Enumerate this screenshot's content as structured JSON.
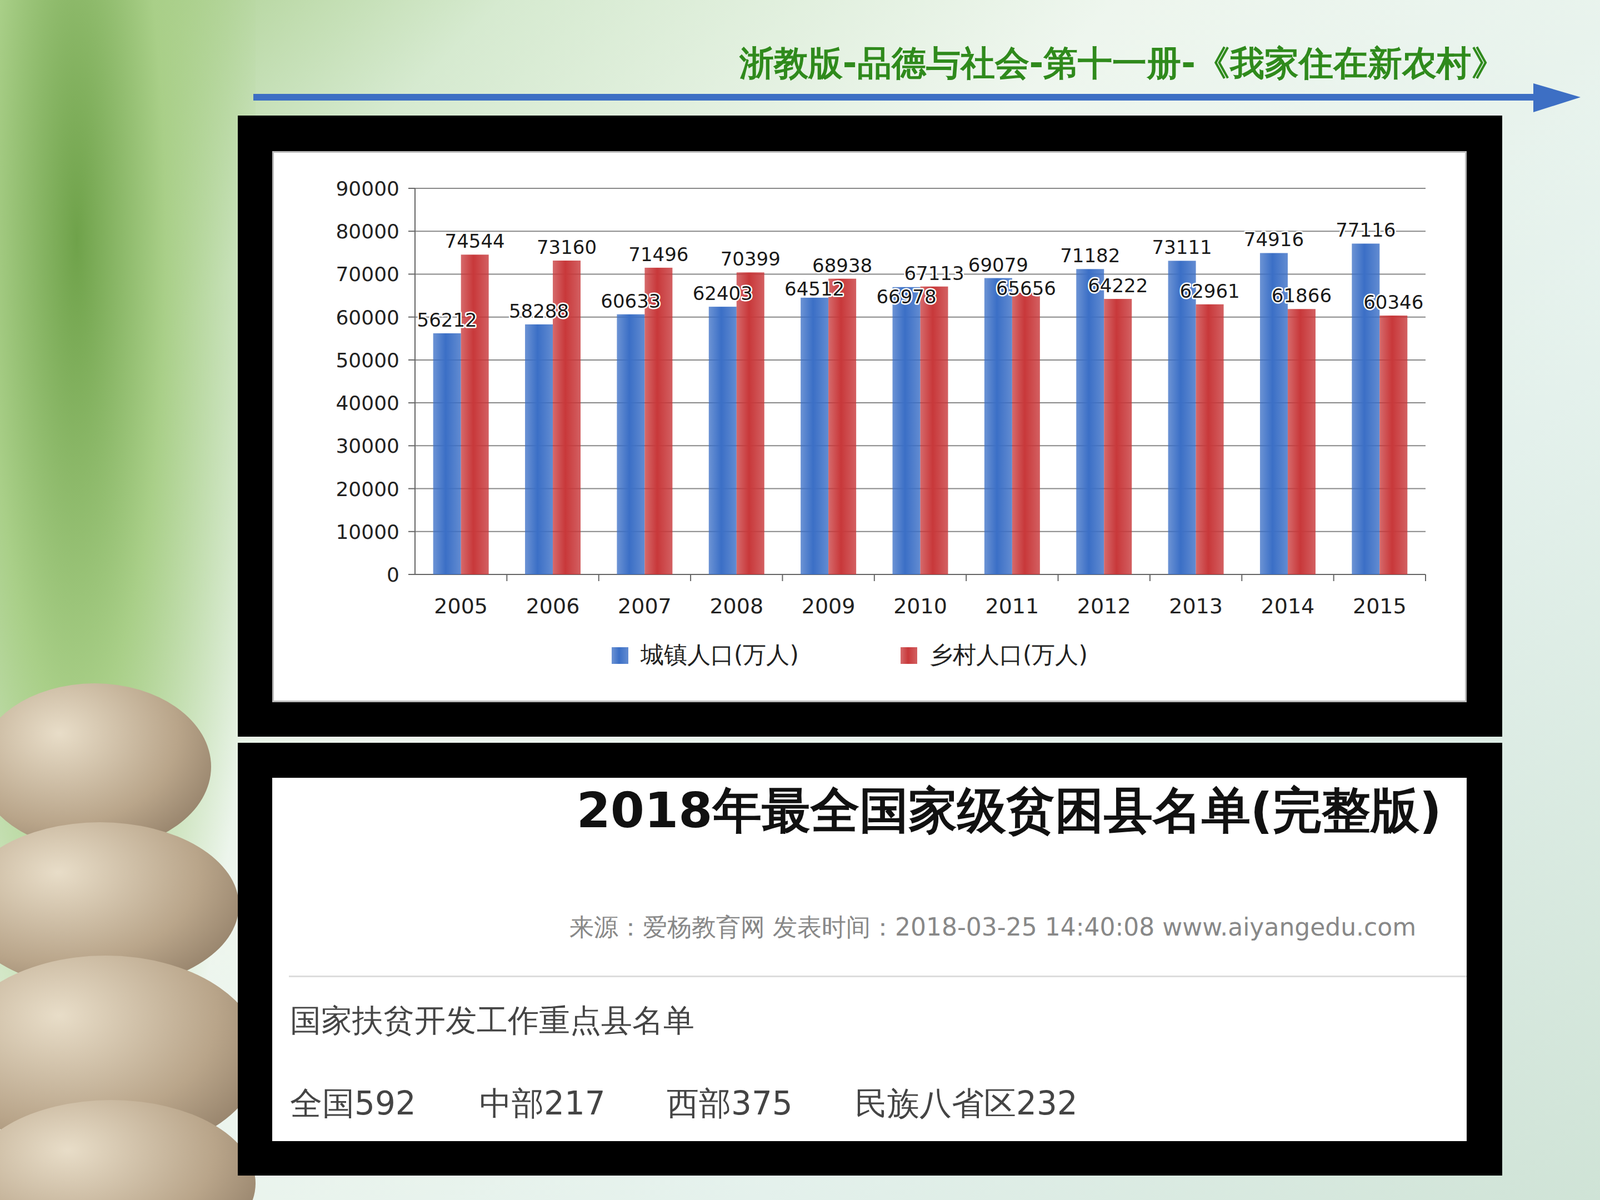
{
  "header": {
    "title": "浙教版-品德与社会-第十一册-《我家住在新农村》"
  },
  "chart_data": {
    "type": "bar",
    "categories": [
      "2005",
      "2006",
      "2007",
      "2008",
      "2009",
      "2010",
      "2011",
      "2012",
      "2013",
      "2014",
      "2015"
    ],
    "series": [
      {
        "name": "城镇人口(万人)",
        "color": "#3b6fc6",
        "values": [
          56212,
          58288,
          60633,
          62403,
          64512,
          66978,
          69079,
          71182,
          73111,
          74916,
          77116
        ]
      },
      {
        "name": "乡村人口(万人)",
        "color": "#c8383a",
        "values": [
          74544,
          73160,
          71496,
          70399,
          68938,
          67113,
          65656,
          64222,
          62961,
          61866,
          60346
        ]
      }
    ],
    "ylim": [
      0,
      90000
    ],
    "yticks": [
      0,
      10000,
      20000,
      30000,
      40000,
      50000,
      60000,
      70000,
      80000,
      90000
    ],
    "grid": true,
    "legend": "bottom",
    "data_labels": true
  },
  "article": {
    "title": "2018年最全国家级贫困县名单(完整版)",
    "source": "来源：爱杨教育网 发表时间：2018-03-25 14:40:08 www.aiyangedu.com",
    "heading": "国家扶贫开发工作重点县名单",
    "stats": [
      "全国592",
      "中部217",
      "西部375",
      "民族八省区232"
    ]
  }
}
